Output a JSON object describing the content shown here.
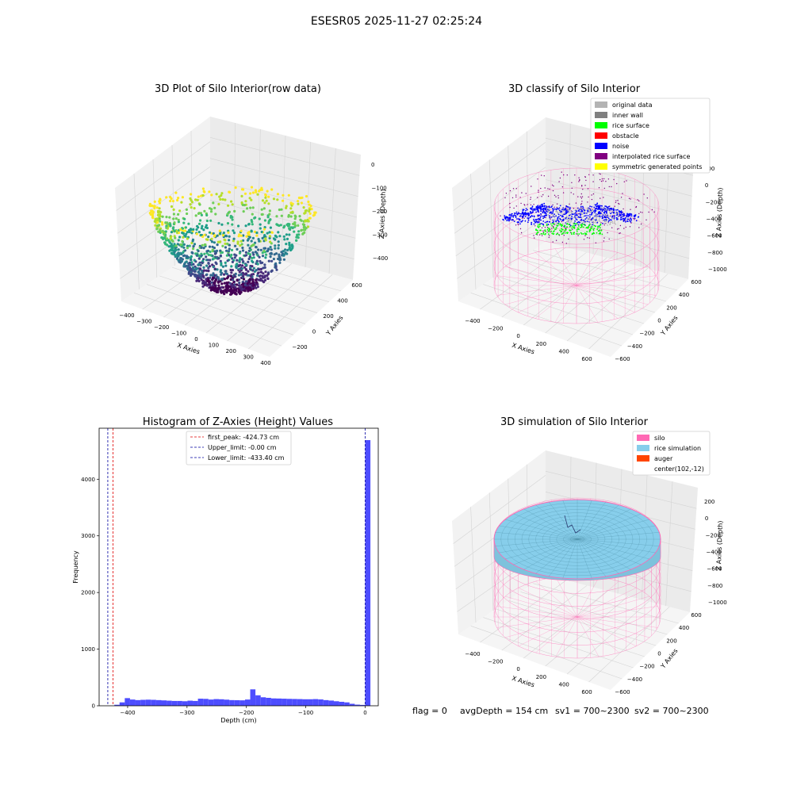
{
  "suptitle": "ESESR05 2025-11-27 02:25:24",
  "footer": {
    "flag": "flag = 0",
    "avg": "avgDepth = 154 cm",
    "sv1": "sv1 = 700~2300",
    "sv2": "sv2 = 700~2300"
  },
  "colors": {
    "histogram_bar": "#4d4dff",
    "first_peak_line": "#e00000",
    "limit_lines": "#0000a0",
    "original_data": "#b3b3b3",
    "inner_wall": "#808080",
    "rice_surface": "#00ff00",
    "obstacle": "#ff0000",
    "noise": "#0000ff",
    "interpolated": "#800080",
    "symmetric": "#ffff00",
    "silo": "#ff69b4",
    "rice_simulation": "#87ceeb",
    "auger": "#ff4500"
  },
  "chart_data": [
    {
      "type": "scatter",
      "title": "3D Plot of Silo Interior(row data)",
      "xlabel": "X Axies",
      "ylabel": "Y Axies",
      "zlabel": "Z Axies (Depth)",
      "colormap": "viridis",
      "xlim": [
        -450,
        420
      ],
      "ylim": [
        -280,
        650
      ],
      "zlim": [
        -450,
        10
      ],
      "xticks": [
        "−400",
        "−300",
        "−200",
        "−100",
        "0",
        "100",
        "200",
        "300",
        "400"
      ],
      "yticks": [
        "−200",
        "0",
        "200",
        "400",
        "600"
      ],
      "zticks": [
        "0",
        "−100",
        "−200",
        "−300",
        "−400"
      ],
      "grid": true
    },
    {
      "type": "scatter",
      "title": "3D classify of Silo Interior",
      "xlabel": "X Axies",
      "ylabel": "Y Axies",
      "zlabel": "Z Axies (Depth)",
      "xticks": [
        "−400",
        "−200",
        "0",
        "200",
        "400",
        "600"
      ],
      "yticks": [
        "−600",
        "−400",
        "−200",
        "0",
        "200",
        "400",
        "600"
      ],
      "zticks": [
        "200",
        "0",
        "−200",
        "−400",
        "−600",
        "−800",
        "−1000"
      ],
      "legend_position": "top-right",
      "legend": [
        "original data",
        "inner wall",
        "rice surface",
        "obstacle",
        "noise",
        "interpolated rice surface",
        "symmetric generated points"
      ],
      "grid": true
    },
    {
      "type": "bar",
      "title": "Histogram of Z-Axies (Height) Values",
      "xlabel": "Depth (cm)",
      "ylabel": "Frequency",
      "xlim": [
        -448,
        22
      ],
      "ylim": [
        0,
        4900
      ],
      "xticks": [
        -400,
        -300,
        -200,
        -100,
        0
      ],
      "yticks": [
        0,
        1000,
        2000,
        3000,
        4000
      ],
      "bin_start": -440,
      "bin_width": 8.8,
      "values": [
        0,
        0,
        18,
        60,
        135,
        110,
        100,
        105,
        108,
        105,
        100,
        95,
        90,
        85,
        85,
        80,
        90,
        85,
        125,
        122,
        110,
        118,
        115,
        108,
        100,
        98,
        96,
        110,
        290,
        185,
        150,
        140,
        130,
        128,
        125,
        122,
        120,
        118,
        115,
        115,
        118,
        112,
        100,
        92,
        80,
        70,
        60,
        35,
        20,
        15,
        4690
      ],
      "vlines": [
        {
          "name": "first_peak: -424.73 cm",
          "x": -424.73,
          "style": "red-dashed"
        },
        {
          "name": "Upper_limit: -0.00 cm",
          "x": 0,
          "style": "blue-dashed"
        },
        {
          "name": "Lower_limit: -433.40 cm",
          "x": -433.4,
          "style": "blue-dashed"
        }
      ],
      "legend_position": "upper-center"
    },
    {
      "type": "surface",
      "title": "3D simulation of Silo Interior",
      "xlabel": "X Axies",
      "ylabel": "Y Axies",
      "zlabel": "Z Axies (Depth)",
      "xticks": [
        "−400",
        "−200",
        "0",
        "200",
        "400",
        "600"
      ],
      "yticks": [
        "−600",
        "−400",
        "−200",
        "0",
        "200",
        "400",
        "600"
      ],
      "zticks": [
        "200",
        "0",
        "−200",
        "−400",
        "−600",
        "−800",
        "−1000"
      ],
      "legend_position": "top-right",
      "legend": [
        "silo",
        "rice simulation",
        "auger",
        "center(102,-12)"
      ],
      "grid": true
    }
  ]
}
